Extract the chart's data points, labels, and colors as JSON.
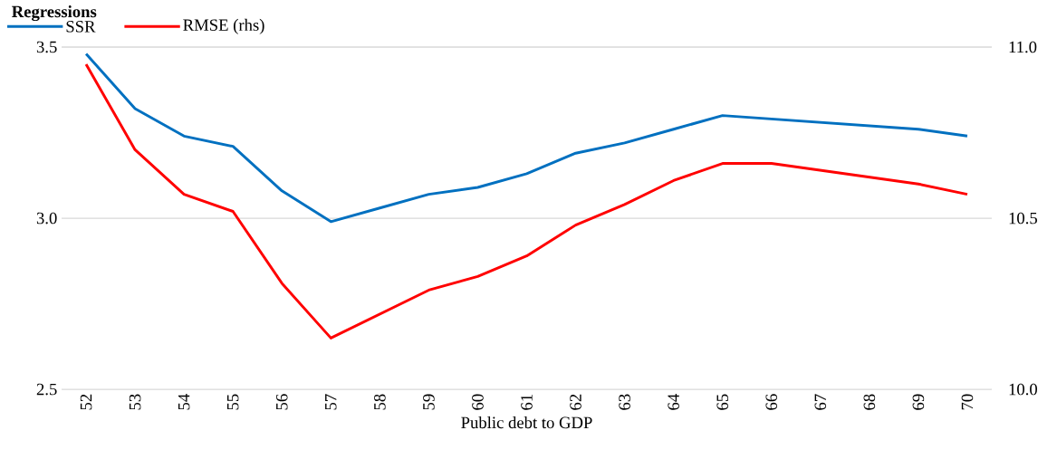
{
  "chart_data": {
    "type": "line",
    "title": "Regressions",
    "xlabel": "Public debt to GDP",
    "categories": [
      "52",
      "53",
      "54",
      "55",
      "56",
      "57",
      "58",
      "59",
      "60",
      "61",
      "62",
      "63",
      "64",
      "65",
      "66",
      "67",
      "68",
      "69",
      "70"
    ],
    "series": [
      {
        "name": "SSR",
        "color": "#0070c0",
        "values": [
          3.48,
          3.32,
          3.24,
          3.21,
          3.08,
          2.99,
          3.03,
          3.07,
          3.09,
          3.13,
          3.19,
          3.22,
          3.26,
          3.3,
          3.29,
          3.28,
          3.27,
          3.26,
          3.24
        ]
      },
      {
        "name": "RMSE (rhs)",
        "color": "#ff0000",
        "axis": "y2",
        "values": [
          10.95,
          10.7,
          10.57,
          10.52,
          10.31,
          10.15,
          10.22,
          10.29,
          10.33,
          10.39,
          10.48,
          10.54,
          10.61,
          10.66,
          10.66,
          10.64,
          10.62,
          10.6,
          10.57
        ]
      }
    ],
    "ylim": [
      2.5,
      3.5
    ],
    "yticks": [
      {
        "value": 2.5,
        "label": "2.5"
      },
      {
        "value": 3,
        "label": "3.0"
      },
      {
        "value": 3.5,
        "label": "3.5"
      }
    ],
    "y2lim": [
      10,
      11
    ],
    "y2ticks": [
      {
        "value": 10,
        "label": "10.0"
      },
      {
        "value": 10.5,
        "label": "10.5"
      },
      {
        "value": 11,
        "label": "11.0"
      }
    ],
    "grid": "y",
    "legend": "top left",
    "marker": "none",
    "line_style": "solid"
  }
}
